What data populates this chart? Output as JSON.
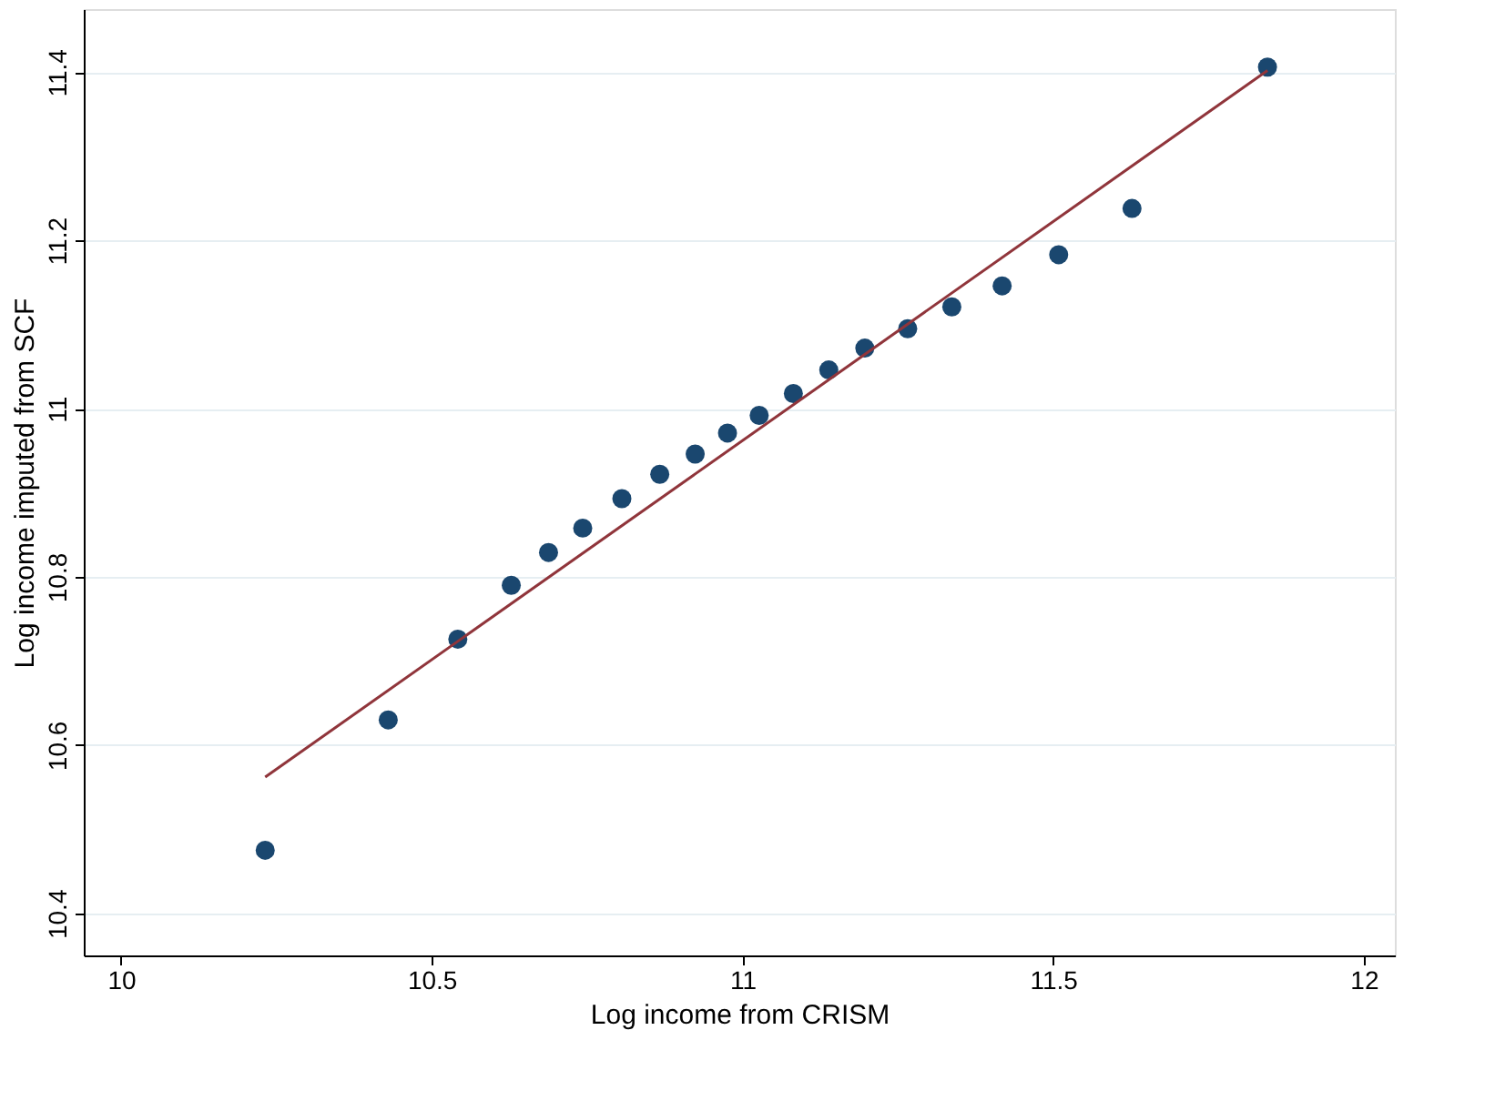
{
  "chart_data": {
    "type": "scatter",
    "xlabel": "Log income from CRISM",
    "ylabel": "Log income imputed from SCF",
    "xlim": [
      9.94,
      12.05
    ],
    "xticks": [
      10,
      10.5,
      11,
      11.5,
      12
    ],
    "ylim": [
      10.35,
      11.475
    ],
    "yticks": [
      10.4,
      10.6,
      10.8,
      11,
      11.2,
      11.4
    ],
    "grid": "y",
    "series": [
      {
        "color": "#1a476f",
        "marker": "circle",
        "x": [
          10.232,
          10.43,
          10.542,
          10.628,
          10.688,
          10.743,
          10.806,
          10.867,
          10.924,
          10.976,
          11.027,
          11.082,
          11.139,
          11.197,
          11.266,
          11.337,
          11.418,
          11.509,
          11.627,
          11.845
        ],
        "values": [
          10.475,
          10.63,
          10.726,
          10.79,
          10.829,
          10.858,
          10.893,
          10.922,
          10.946,
          10.971,
          10.992,
          11.018,
          11.046,
          11.072,
          11.095,
          11.121,
          11.146,
          11.183,
          11.238,
          11.406
        ]
      },
      {
        "type": "line",
        "color": "#90353b",
        "x": [
          10.232,
          11.845
        ],
        "values": [
          10.562,
          11.402
        ]
      }
    ]
  }
}
